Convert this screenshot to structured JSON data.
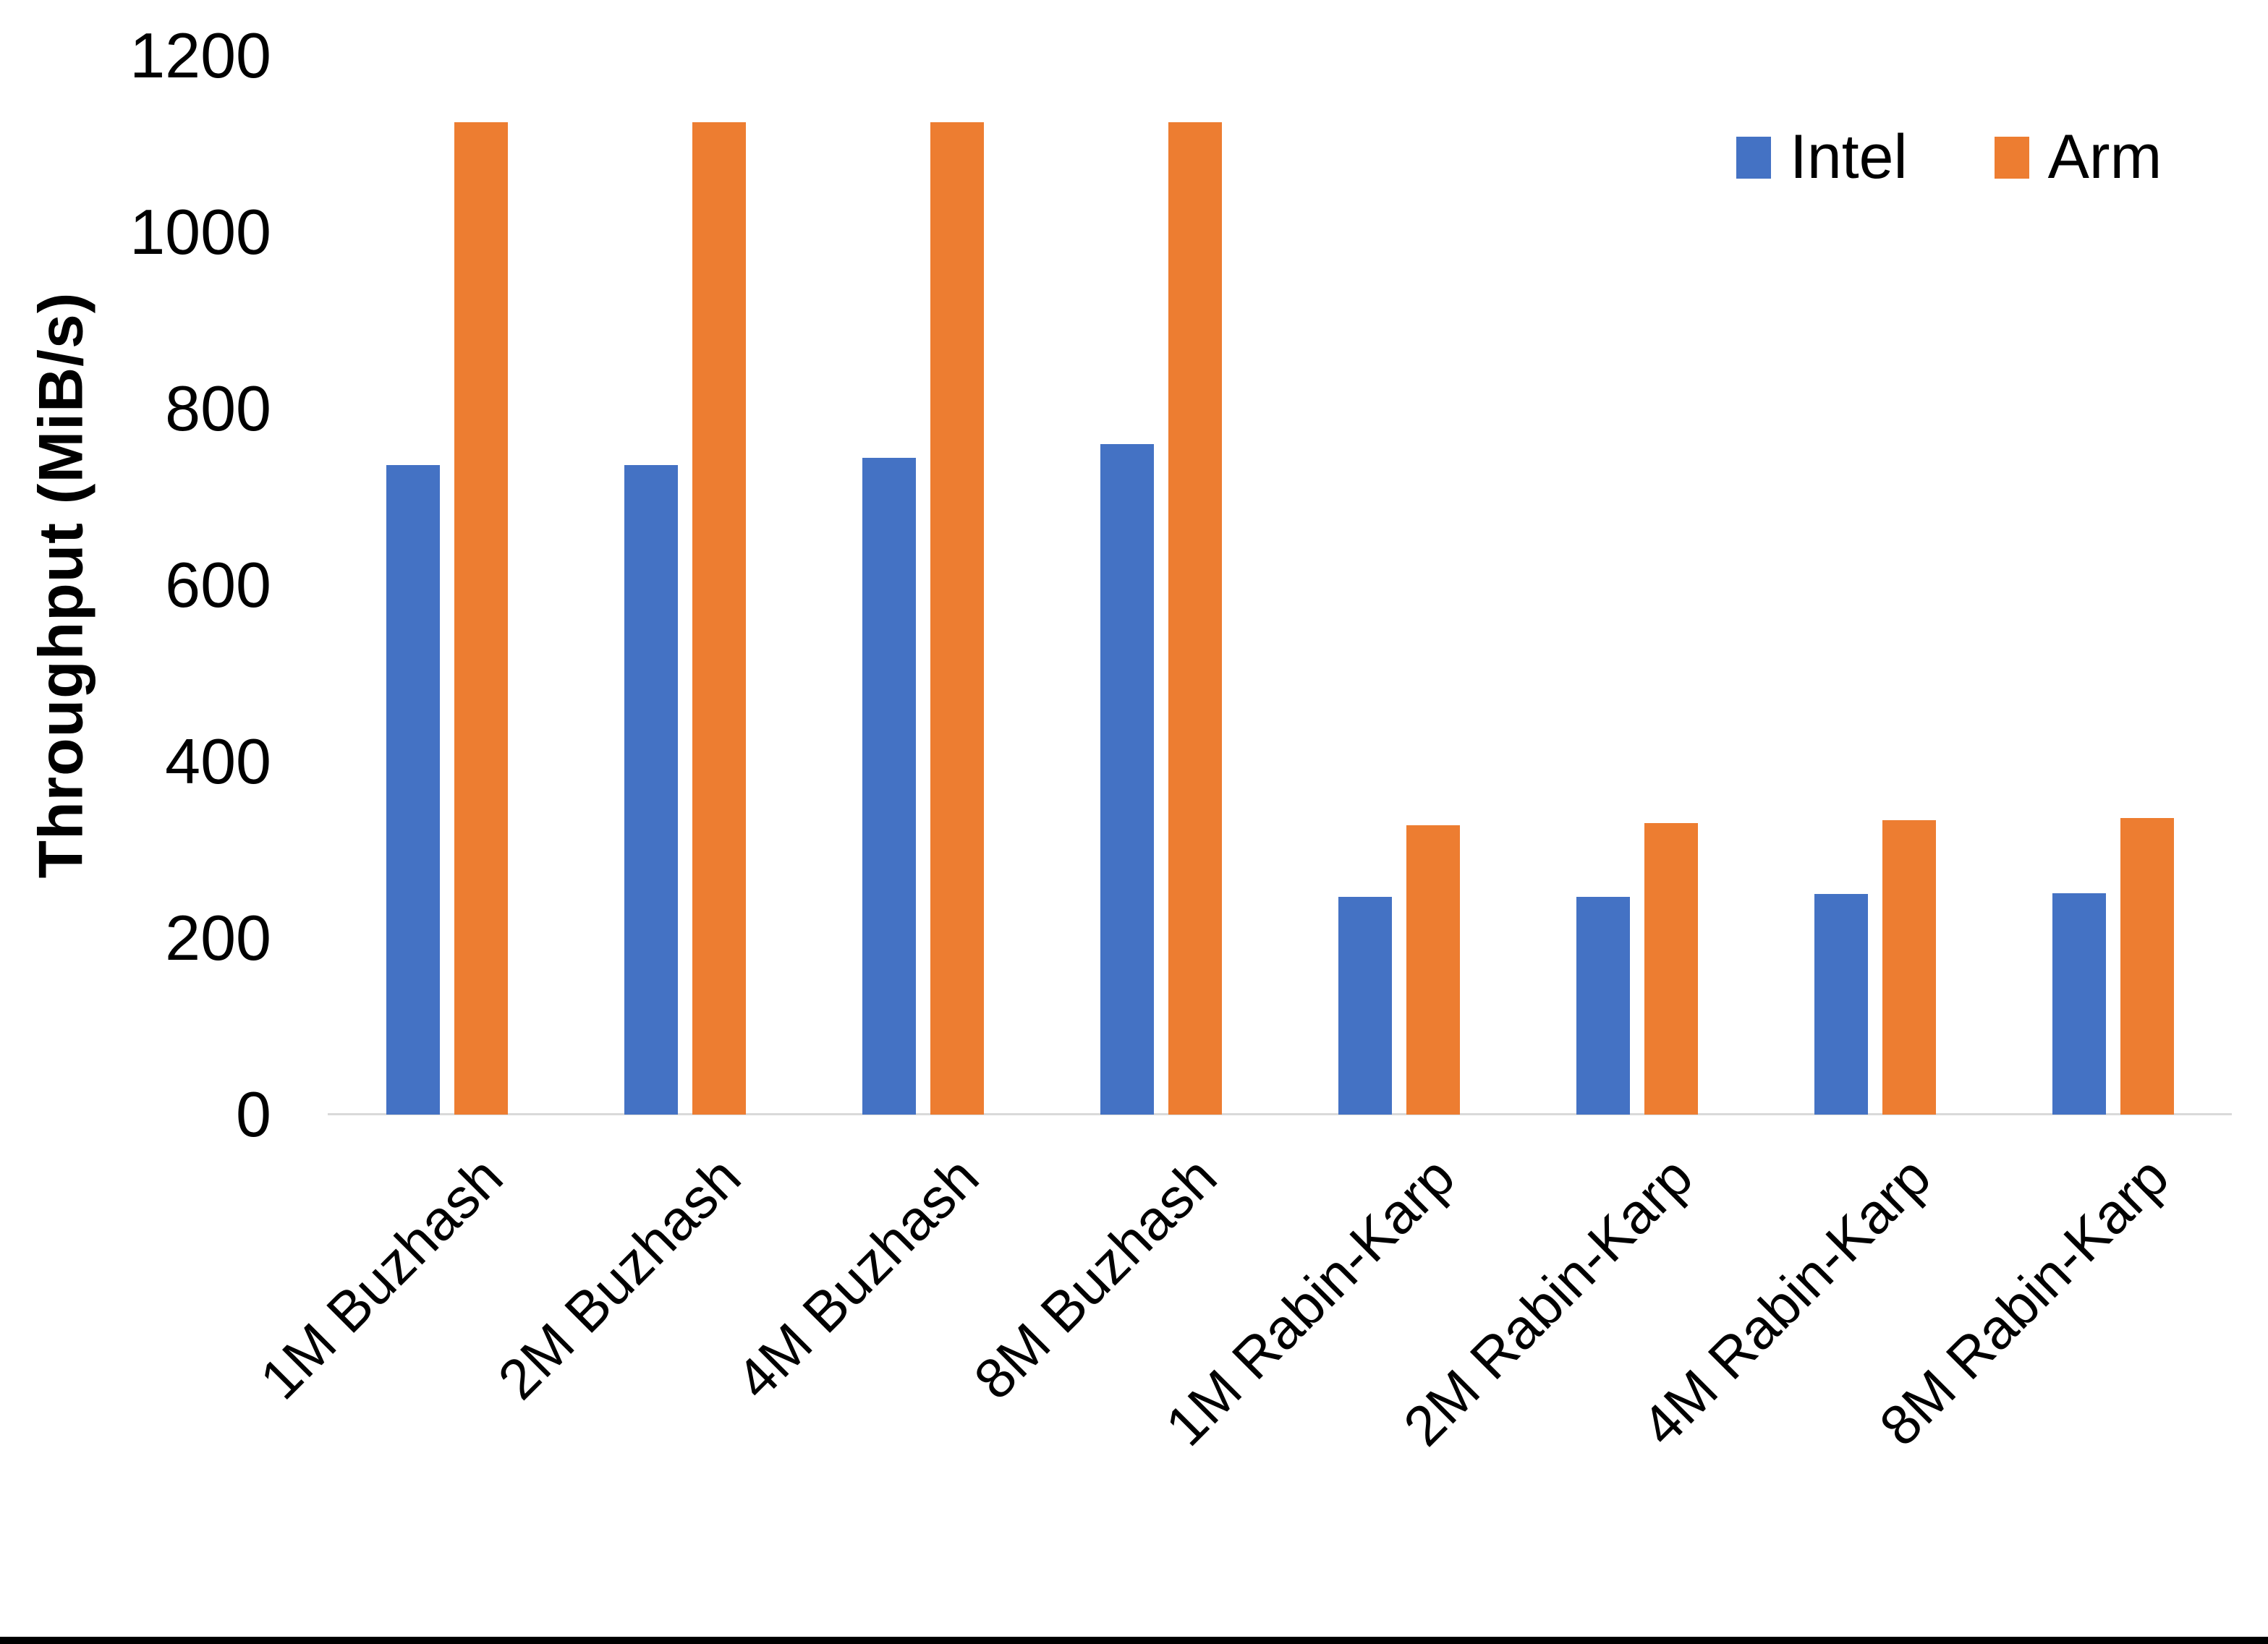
{
  "chart_data": {
    "type": "bar",
    "title": "",
    "xlabel": "",
    "ylabel": "Throughput (MiB/s)",
    "categories": [
      "1M Buzhash",
      "2M Buzhash",
      "4M Buzhash",
      "8M Buzhash",
      "1M Rabin-Karp",
      "2M Rabin-Karp",
      "4M Rabin-Karp",
      "8M Rabin-Karp"
    ],
    "series": [
      {
        "name": "Intel",
        "color": "#4472C4",
        "values": [
          736,
          736,
          744,
          760,
          247,
          247,
          250,
          251
        ]
      },
      {
        "name": "Arm",
        "color": "#ED7D31",
        "values": [
          1125,
          1125,
          1125,
          1125,
          328,
          330,
          334,
          336
        ]
      }
    ],
    "ylim": [
      0,
      1200
    ],
    "ytick_step": 200,
    "ytick_labels": [
      "0",
      "200",
      "400",
      "600",
      "800",
      "1000",
      "1200"
    ],
    "grid": false,
    "legend_position": "top-right",
    "legend_labels": [
      "Intel",
      "Arm"
    ],
    "axis_line_color": "#D9D9D9",
    "text_color": "#000000",
    "background": "#FFFFFF",
    "bottom_border_color": "#000000"
  }
}
